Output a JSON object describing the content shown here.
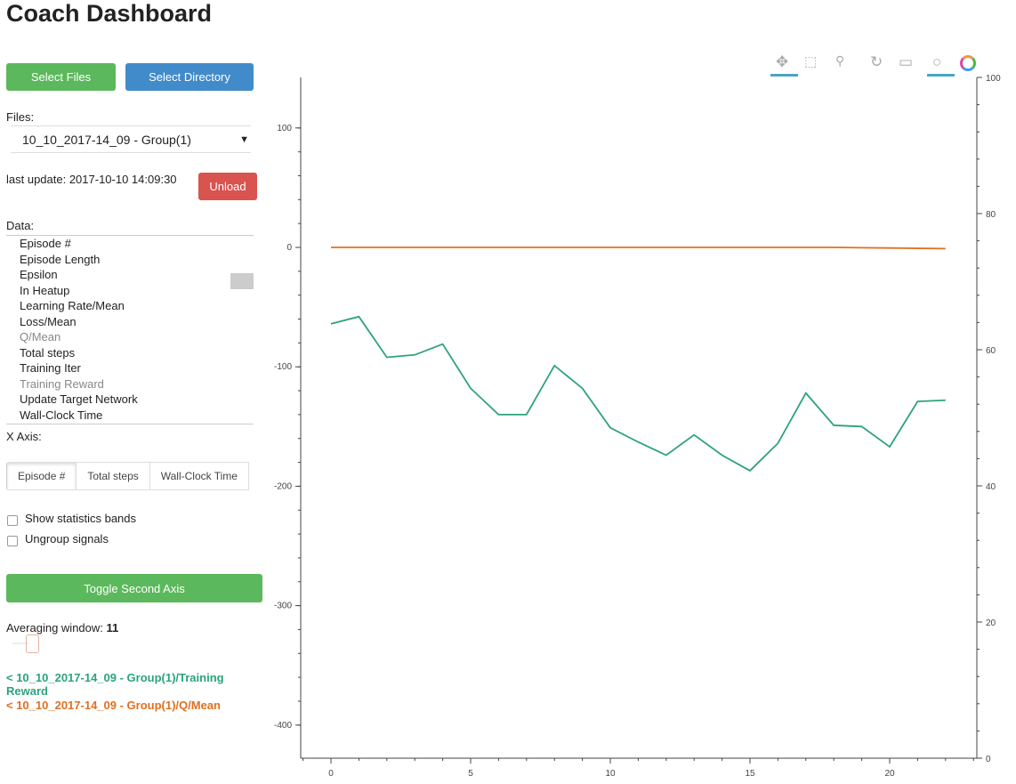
{
  "title": "Coach Dashboard",
  "buttons": {
    "select_files": "Select Files",
    "select_directory": "Select Directory",
    "unload": "Unload",
    "toggle_axis": "Toggle Second Axis"
  },
  "files": {
    "label": "Files:",
    "selected": "10_10_2017-14_09 - Group(1)",
    "last_update": "last update: 2017-10-10 14:09:30"
  },
  "data_list": {
    "label": "Data:",
    "items": [
      "Episode #",
      "Episode Length",
      "Epsilon",
      "In Heatup",
      "Learning Rate/Mean",
      "Loss/Mean",
      "Q/Mean",
      "Total steps",
      "Training Iter",
      "Training Reward",
      "Update Target Network",
      "Wall-Clock Time"
    ],
    "selected": [
      "Q/Mean",
      "Training Reward"
    ]
  },
  "x_axis": {
    "label": "X Axis:",
    "options": [
      "Episode #",
      "Total steps",
      "Wall-Clock Time"
    ],
    "active": "Episode #"
  },
  "checkboxes": [
    {
      "label": "Show statistics bands",
      "checked": false
    },
    {
      "label": "Ungroup signals",
      "checked": false
    }
  ],
  "averaging": {
    "label": "Averaging window:",
    "value": "11"
  },
  "legend": [
    {
      "text": "< 10_10_2017-14_09 - Group(1)/Training Reward",
      "color": "#2ca37c"
    },
    {
      "text": "< 10_10_2017-14_09 - Group(1)/Q/Mean",
      "color": "#e07020"
    }
  ],
  "toolbar": [
    "pan-icon",
    "box-zoom-icon",
    "wheel-zoom-icon",
    "reset-icon",
    "save-icon",
    "hover-icon",
    "bokeh-logo-icon"
  ],
  "chart_data": {
    "type": "line",
    "x": [
      0,
      1,
      2,
      3,
      4,
      5,
      6,
      7,
      8,
      9,
      10,
      11,
      12,
      13,
      14,
      15,
      16,
      17,
      18,
      19,
      20,
      21,
      22
    ],
    "series": [
      {
        "name": "Training Reward",
        "color": "#2ca37c",
        "values": [
          -64,
          -58,
          -92,
          -90,
          -81,
          -118,
          -140,
          -140,
          -99,
          -118,
          -151,
          -163,
          -174,
          -157,
          -174,
          -187,
          -164,
          -122,
          -149,
          -150,
          -167,
          -129,
          -128
        ]
      },
      {
        "name": "Q/Mean",
        "color": "#e07020",
        "values": [
          0,
          0,
          0,
          0,
          0,
          0,
          0,
          0,
          0,
          0,
          0,
          0,
          0,
          0,
          0,
          0,
          0,
          0,
          0,
          -0.3,
          -0.5,
          -0.8,
          -1
        ]
      }
    ],
    "xlim": [
      -1.0,
      23.2
    ],
    "ylim": [
      -430,
      140
    ],
    "y2lim": [
      0,
      100
    ],
    "xticks": [
      0,
      5,
      10,
      15,
      20
    ],
    "yticks": [
      100,
      0,
      -100,
      -200,
      -300,
      -400
    ],
    "y2ticks": [
      0,
      20,
      40,
      60,
      80,
      100
    ]
  }
}
